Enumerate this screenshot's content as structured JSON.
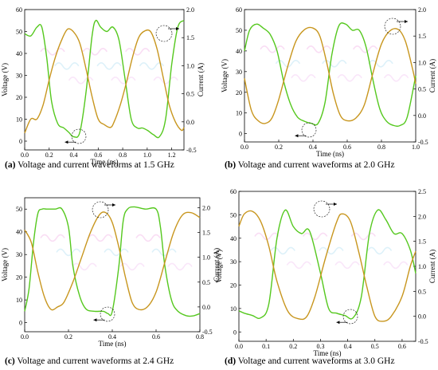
{
  "chart_data": [
    {
      "type": "line",
      "caption_label": "(a)",
      "caption_text": " Voltage and current waveforms at 1.5 GHz",
      "xlabel": "Time (ns)",
      "ylabel": "Voltage (V)",
      "y2label": "Current (A)",
      "xlim": [
        0,
        1.3
      ],
      "xticks": [
        0.0,
        0.2,
        0.4,
        0.6,
        0.8,
        1.0,
        1.2
      ],
      "ylim": [
        -4,
        60
      ],
      "yticks": [
        0,
        10,
        20,
        30,
        40,
        50,
        60
      ],
      "y2lim": [
        -0.5,
        2.0
      ],
      "y2ticks": [
        -0.5,
        0.0,
        0.5,
        1.0,
        1.5,
        2.0
      ],
      "series": [
        {
          "axis": "left",
          "color": "#55c81e",
          "x": [
            0,
            0.05,
            0.1,
            0.14,
            0.18,
            0.22,
            0.27,
            0.32,
            0.36,
            0.4,
            0.45,
            0.5,
            0.55,
            0.58,
            0.62,
            0.67,
            0.72,
            0.77,
            0.82,
            0.87,
            0.92,
            0.96,
            1.0,
            1.05,
            1.1,
            1.15,
            1.2,
            1.25,
            1.3
          ],
          "y": [
            49,
            48,
            52,
            52,
            38,
            18,
            8,
            6,
            4,
            2,
            4,
            22,
            48,
            55,
            52,
            50,
            52,
            46,
            28,
            10,
            6,
            6,
            5,
            3,
            2,
            10,
            35,
            52,
            55
          ]
        },
        {
          "axis": "right",
          "color": "#c8961e",
          "x": [
            0,
            0.05,
            0.1,
            0.15,
            0.2,
            0.25,
            0.3,
            0.35,
            0.4,
            0.45,
            0.5,
            0.55,
            0.6,
            0.65,
            0.7,
            0.73,
            0.78,
            0.83,
            0.88,
            0.93,
            0.98,
            1.03,
            1.08,
            1.13,
            1.18,
            1.23,
            1.28,
            1.3
          ],
          "y": [
            -0.2,
            0.05,
            0.05,
            0.3,
            0.75,
            1.15,
            1.45,
            1.65,
            1.6,
            1.4,
            0.95,
            0.45,
            0.05,
            -0.05,
            -0.1,
            0.0,
            0.3,
            0.7,
            1.15,
            1.5,
            1.62,
            1.6,
            1.3,
            0.8,
            0.3,
            0.0,
            -0.15,
            -0.1
          ]
        }
      ]
    },
    {
      "type": "line",
      "caption_label": "(b)",
      "caption_text": " Voltage and current waveforms at 2.0 GHz",
      "xlabel": "Time (ns)",
      "ylabel": "Voltage (V)",
      "y2label": "Current (A)",
      "xlim": [
        0,
        1.0
      ],
      "xticks": [
        0.0,
        0.2,
        0.4,
        0.6,
        0.8,
        1.0
      ],
      "ylim": [
        -4,
        60
      ],
      "yticks": [
        0,
        10,
        20,
        30,
        40,
        50,
        60
      ],
      "y2lim": [
        -0.5,
        2.0
      ],
      "y2ticks": [
        -0.5,
        0.0,
        0.5,
        1.0,
        1.5,
        2.0
      ],
      "series": [
        {
          "axis": "left",
          "color": "#55c81e",
          "x": [
            0,
            0.03,
            0.07,
            0.11,
            0.15,
            0.19,
            0.23,
            0.27,
            0.31,
            0.35,
            0.39,
            0.43,
            0.47,
            0.51,
            0.55,
            0.59,
            0.63,
            0.67,
            0.71,
            0.75,
            0.79,
            0.83,
            0.87,
            0.91,
            0.95,
            1.0
          ],
          "y": [
            40,
            50,
            53,
            51,
            48,
            40,
            25,
            14,
            8,
            6,
            5,
            5,
            15,
            38,
            52,
            53,
            50,
            50,
            42,
            26,
            12,
            6,
            4,
            4,
            8,
            28
          ]
        },
        {
          "axis": "right",
          "color": "#c8961e",
          "x": [
            0,
            0.04,
            0.08,
            0.12,
            0.16,
            0.2,
            0.25,
            0.3,
            0.35,
            0.4,
            0.44,
            0.48,
            0.52,
            0.56,
            0.6,
            0.65,
            0.7,
            0.75,
            0.8,
            0.85,
            0.9,
            0.94,
            0.98,
            1.0
          ],
          "y": [
            0.7,
            0.1,
            -0.1,
            -0.15,
            -0.05,
            0.3,
            0.9,
            1.4,
            1.62,
            1.65,
            1.5,
            1.0,
            0.4,
            0.0,
            -0.1,
            -0.05,
            0.2,
            0.8,
            1.35,
            1.6,
            1.62,
            1.4,
            0.9,
            0.6
          ]
        }
      ]
    },
    {
      "type": "line",
      "caption_label": "(c)",
      "caption_text": " Voltage and current waveforms at 2.4 GHz",
      "xlabel": "Time (ns)",
      "ylabel": "Voltage (V)",
      "y2label": "Current (A)",
      "xlim": [
        0,
        0.8
      ],
      "xticks": [
        0.0,
        0.2,
        0.4,
        0.6,
        0.8
      ],
      "ylim": [
        -4,
        55
      ],
      "yticks": [
        0,
        10,
        20,
        30,
        40,
        50
      ],
      "y2lim": [
        -0.5,
        2.2
      ],
      "y2ticks": [
        -0.5,
        0.0,
        0.5,
        1.0,
        1.5,
        2.0
      ],
      "series": [
        {
          "axis": "left",
          "color": "#55c81e",
          "x": [
            0,
            0.02,
            0.04,
            0.06,
            0.08,
            0.1,
            0.14,
            0.17,
            0.2,
            0.22,
            0.25,
            0.28,
            0.32,
            0.36,
            0.38,
            0.4,
            0.43,
            0.45,
            0.47,
            0.5,
            0.55,
            0.6,
            0.62,
            0.64,
            0.67,
            0.7,
            0.74,
            0.77,
            0.8
          ],
          "y": [
            5,
            15,
            35,
            48,
            50,
            50,
            50,
            50,
            42,
            25,
            12,
            6,
            5,
            5,
            4,
            5,
            25,
            45,
            50,
            51,
            50,
            50,
            42,
            25,
            10,
            5,
            3,
            3,
            4
          ]
        },
        {
          "axis": "right",
          "color": "#c8961e",
          "x": [
            0,
            0.03,
            0.06,
            0.09,
            0.12,
            0.15,
            0.18,
            0.22,
            0.26,
            0.3,
            0.34,
            0.37,
            0.4,
            0.43,
            0.46,
            0.49,
            0.52,
            0.56,
            0.6,
            0.64,
            0.68,
            0.72,
            0.76,
            0.8
          ],
          "y": [
            1.55,
            1.3,
            0.7,
            0.2,
            -0.05,
            0.0,
            0.1,
            0.5,
            1.0,
            1.5,
            1.85,
            1.9,
            1.7,
            1.2,
            0.6,
            0.1,
            -0.05,
            0.0,
            0.3,
            0.9,
            1.5,
            1.85,
            1.9,
            1.8
          ]
        }
      ]
    },
    {
      "type": "line",
      "caption_label": "(d)",
      "caption_text": " Voltage and current waveforms at 3.0 GHz",
      "xlabel": "Time (ns)",
      "ylabel": "Voltage (V)",
      "y2label": "Current (A)",
      "xlim": [
        0,
        0.65
      ],
      "xticks": [
        0.0,
        0.1,
        0.2,
        0.3,
        0.4,
        0.5,
        0.6
      ],
      "ylim": [
        -4,
        60
      ],
      "yticks": [
        0,
        10,
        20,
        30,
        40,
        50,
        60
      ],
      "y2lim": [
        -0.5,
        2.5
      ],
      "y2ticks": [
        -0.5,
        0.0,
        0.5,
        1.0,
        1.5,
        2.0,
        2.5
      ],
      "series": [
        {
          "axis": "left",
          "color": "#55c81e",
          "x": [
            0,
            0.02,
            0.05,
            0.08,
            0.11,
            0.14,
            0.17,
            0.2,
            0.23,
            0.26,
            0.3,
            0.33,
            0.36,
            0.39,
            0.42,
            0.45,
            0.48,
            0.51,
            0.54,
            0.57,
            0.6,
            0.63,
            0.65
          ],
          "y": [
            9,
            8,
            7,
            6,
            12,
            40,
            52,
            45,
            42,
            43,
            25,
            10,
            8,
            7,
            6,
            15,
            42,
            52,
            48,
            42,
            42,
            35,
            25
          ]
        },
        {
          "axis": "right",
          "color": "#c8961e",
          "x": [
            0,
            0.02,
            0.05,
            0.08,
            0.11,
            0.14,
            0.18,
            0.22,
            0.25,
            0.28,
            0.32,
            0.36,
            0.38,
            0.41,
            0.44,
            0.47,
            0.5,
            0.53,
            0.56,
            0.6,
            0.63,
            0.65
          ],
          "y": [
            1.8,
            2.05,
            2.1,
            1.9,
            1.4,
            0.7,
            0.1,
            -0.05,
            0.0,
            0.4,
            1.2,
            1.9,
            2.05,
            1.9,
            1.3,
            0.6,
            0.0,
            -0.1,
            0.0,
            0.4,
            1.0,
            1.3
          ]
        }
      ]
    }
  ]
}
